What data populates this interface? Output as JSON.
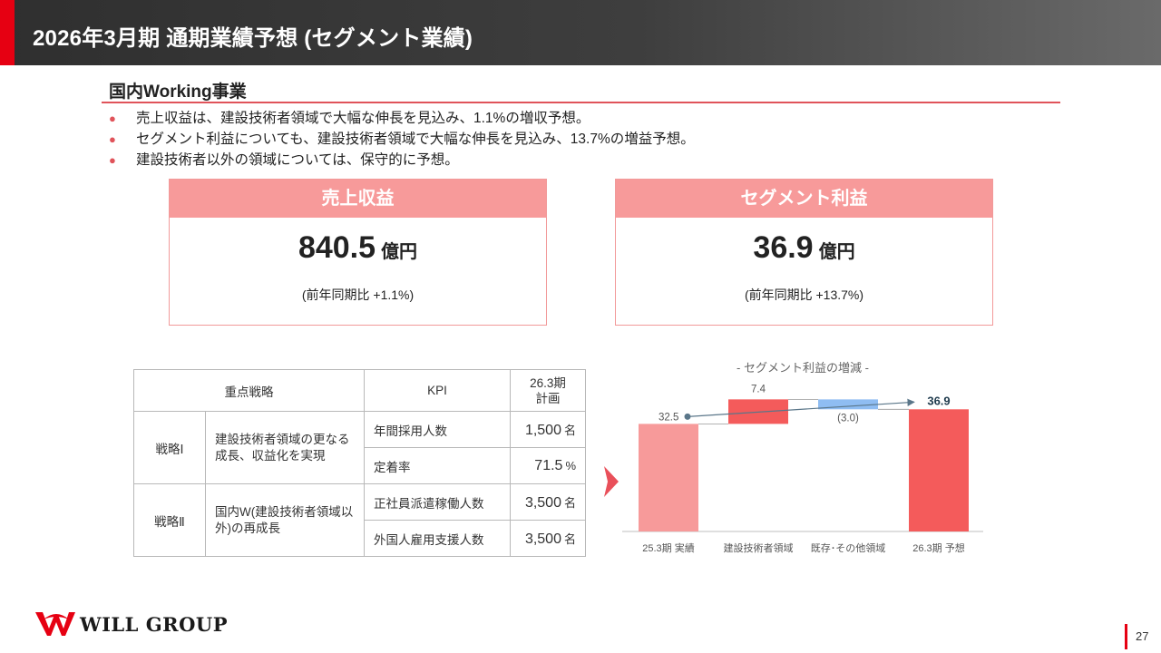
{
  "header": {
    "title": "2026年3月期 通期業績予想 (セグメント業績)"
  },
  "section": {
    "title": "国内Working事業",
    "bullets": [
      "売上収益は、建設技術者領域で大幅な伸長を見込み、1.1%の増収予想。",
      "セグメント利益についても、建設技術者領域で大幅な伸長を見込み、13.7%の増益予想。",
      "建設技術者以外の領域については、保守的に予想。"
    ]
  },
  "kpis": [
    {
      "label": "売上収益",
      "value": "840.5",
      "unit": "億円",
      "note": "(前年同期比 +1.1%)"
    },
    {
      "label": "セグメント利益",
      "value": "36.9",
      "unit": "億円",
      "note": "(前年同期比 +13.7%)"
    }
  ],
  "table": {
    "headers": {
      "strategy": "重点戦略",
      "kpi": "KPI",
      "plan": "26.3期\n計画"
    },
    "strategies": [
      {
        "name": "戦略Ⅰ",
        "description": "建設技術者領域の更なる成長、収益化を実現",
        "rows": [
          {
            "kpi": "年間採用人数",
            "value": "1,500",
            "unit": "名"
          },
          {
            "kpi": "定着率",
            "value": "71.5",
            "unit": "%"
          }
        ]
      },
      {
        "name": "戦略Ⅱ",
        "description": "国内W(建設技術者領域以外)の再成長",
        "rows": [
          {
            "kpi": "正社員派遣稼働人数",
            "value": "3,500",
            "unit": "名"
          },
          {
            "kpi": "外国人雇用支援人数",
            "value": "3,500",
            "unit": "名"
          }
        ]
      }
    ]
  },
  "chart_data": {
    "type": "bar",
    "subtype": "waterfall",
    "title": "- セグメント利益の増減 -",
    "categories": [
      "25.3期 実績",
      "建設技術者領域",
      "既存･その他領域",
      "26.3期 予想"
    ],
    "values": [
      32.5,
      7.4,
      -3.0,
      36.9
    ],
    "labels": [
      "32.5",
      "7.4",
      "(3.0)",
      "36.9"
    ],
    "kinds": [
      "total",
      "increase",
      "decrease",
      "total"
    ],
    "colors": {
      "start": "#f79a9a",
      "increase": "#f45b5b",
      "decrease": "#8fbdf2",
      "end": "#f45b5b",
      "trend": "#5a7689"
    },
    "trend_line": {
      "from": 0,
      "to": 3
    }
  },
  "footer": {
    "logo_text": "WILL GROUP",
    "page_number": "27"
  }
}
